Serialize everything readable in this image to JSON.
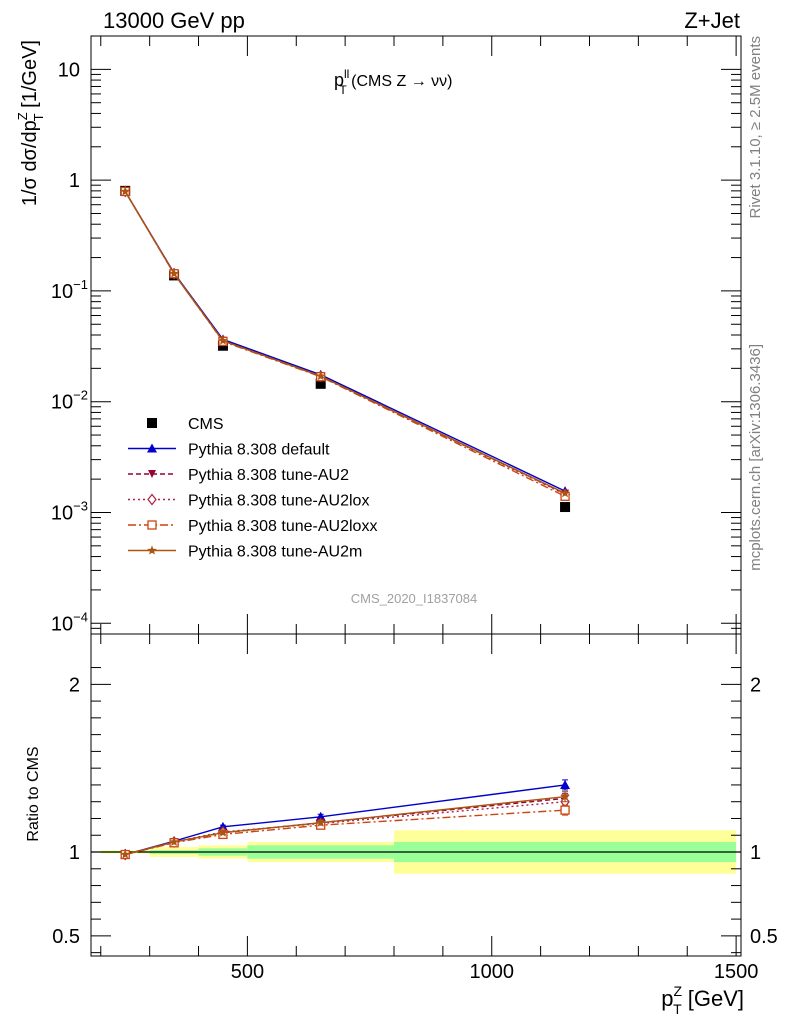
{
  "header": {
    "left": "13000 GeV pp",
    "right": "Z+Jet"
  },
  "side": {
    "rivet": "Rivet 3.1.10, ≥ 2.5M events",
    "mcplots": "mcplots.cern.ch [arXiv:1306.3436]"
  },
  "analysis_id": "CMS_2020_I1837084",
  "chart_data": [
    {
      "type": "line",
      "panel": "main",
      "title": {
        "main": "p",
        "sup": "ll",
        "sub": "T",
        "rest": " (CMS Z → νν)"
      },
      "ylabel": "1/σ dσ/dp",
      "ylabel_sup": "Z",
      "ylabel_sub": "T",
      "ylabel_unit": " [1/GeV]",
      "yscale": "log",
      "ylim": [
        8e-05,
        20
      ],
      "xlim": [
        180,
        1510
      ],
      "y_ticks": [
        {
          "value": 10,
          "label": "10"
        },
        {
          "value": 1,
          "label": "1"
        },
        {
          "value": 0.1,
          "label": "10",
          "exp": "−1"
        },
        {
          "value": 0.01,
          "label": "10",
          "exp": "−2"
        },
        {
          "value": 0.001,
          "label": "10",
          "exp": "−3"
        },
        {
          "value": 0.0001,
          "label": "10",
          "exp": "−4"
        }
      ],
      "x": [
        250,
        350,
        450,
        650,
        1150
      ],
      "series": [
        {
          "name": "CMS",
          "color": "#000000",
          "marker": "square",
          "values": [
            0.8,
            0.138,
            0.032,
            0.0145,
            0.00112
          ]
        },
        {
          "name": "Pythia 8.308 default",
          "color": "#0000cc",
          "marker": "triangle-up",
          "dash": "",
          "values": [
            0.79,
            0.145,
            0.0365,
            0.0175,
            0.00156
          ]
        },
        {
          "name": "Pythia 8.308 tune-AU2",
          "color": "#990033",
          "marker": "triangle-down",
          "dash": "5,3",
          "values": [
            0.79,
            0.143,
            0.0355,
            0.017,
            0.00148
          ]
        },
        {
          "name": "Pythia 8.308 tune-AU2lox",
          "color": "#aa2244",
          "marker": "diamond-open",
          "dash": "2,3",
          "values": [
            0.79,
            0.143,
            0.0355,
            0.017,
            0.00146
          ]
        },
        {
          "name": "Pythia 8.308 tune-AU2loxx",
          "color": "#cc4411",
          "marker": "square-open",
          "dash": "8,3,2,3",
          "values": [
            0.79,
            0.143,
            0.035,
            0.0168,
            0.0014
          ]
        },
        {
          "name": "Pythia 8.308 tune-AU2m",
          "color": "#aa5511",
          "marker": "star",
          "dash": "",
          "values": [
            0.79,
            0.143,
            0.0355,
            0.017,
            0.00149
          ]
        }
      ]
    },
    {
      "type": "line",
      "panel": "ratio",
      "ylabel": "Ratio to CMS",
      "xlabel": "p",
      "xlabel_sup": "Z",
      "xlabel_sub": "T",
      "xlabel_unit": " [GeV]",
      "ylim": [
        0.38,
        2.3
      ],
      "xlim": [
        180,
        1510
      ],
      "x_ticks": [
        500,
        1000,
        1500
      ],
      "y_ticks": [
        {
          "value": 2,
          "label": "2"
        },
        {
          "value": 1,
          "label": "1"
        },
        {
          "value": 0.5,
          "label": "0.5"
        }
      ],
      "uncertainty_bands": [
        {
          "x0": 200,
          "x1": 300,
          "stat": 0.005,
          "total": 0.01
        },
        {
          "x0": 300,
          "x1": 400,
          "stat": 0.012,
          "total": 0.03
        },
        {
          "x0": 400,
          "x1": 500,
          "stat": 0.022,
          "total": 0.04
        },
        {
          "x0": 500,
          "x1": 800,
          "stat": 0.04,
          "total": 0.06
        },
        {
          "x0": 800,
          "x1": 1500,
          "stat": 0.06,
          "total": 0.13
        }
      ],
      "x": [
        250,
        350,
        450,
        650,
        1150
      ],
      "series": [
        {
          "name": "Pythia 8.308 default",
          "values": [
            0.985,
            1.065,
            1.15,
            1.21,
            1.4
          ],
          "errors": [
            0,
            0,
            0.01,
            0.015,
            0.03
          ]
        },
        {
          "name": "Pythia 8.308 tune-AU2",
          "values": [
            0.985,
            1.06,
            1.115,
            1.175,
            1.32
          ],
          "errors": [
            0,
            0,
            0.01,
            0.015,
            0.03
          ]
        },
        {
          "name": "Pythia 8.308 tune-AU2lox",
          "values": [
            0.985,
            1.06,
            1.12,
            1.17,
            1.3
          ],
          "errors": [
            0,
            0,
            0.01,
            0.015,
            0.03
          ]
        },
        {
          "name": "Pythia 8.308 tune-AU2loxx",
          "values": [
            0.985,
            1.055,
            1.105,
            1.16,
            1.25
          ],
          "errors": [
            0,
            0,
            0.01,
            0.015,
            0.03
          ]
        },
        {
          "name": "Pythia 8.308 tune-AU2m",
          "values": [
            0.985,
            1.06,
            1.115,
            1.175,
            1.33
          ],
          "errors": [
            0,
            0,
            0.01,
            0.015,
            0.03
          ]
        }
      ]
    }
  ],
  "legend": {
    "placement": "lower-left",
    "items": [
      "CMS",
      "Pythia 8.308 default",
      "Pythia 8.308 tune-AU2",
      "Pythia 8.308 tune-AU2lox",
      "Pythia 8.308 tune-AU2loxx",
      "Pythia 8.308 tune-AU2m"
    ]
  }
}
